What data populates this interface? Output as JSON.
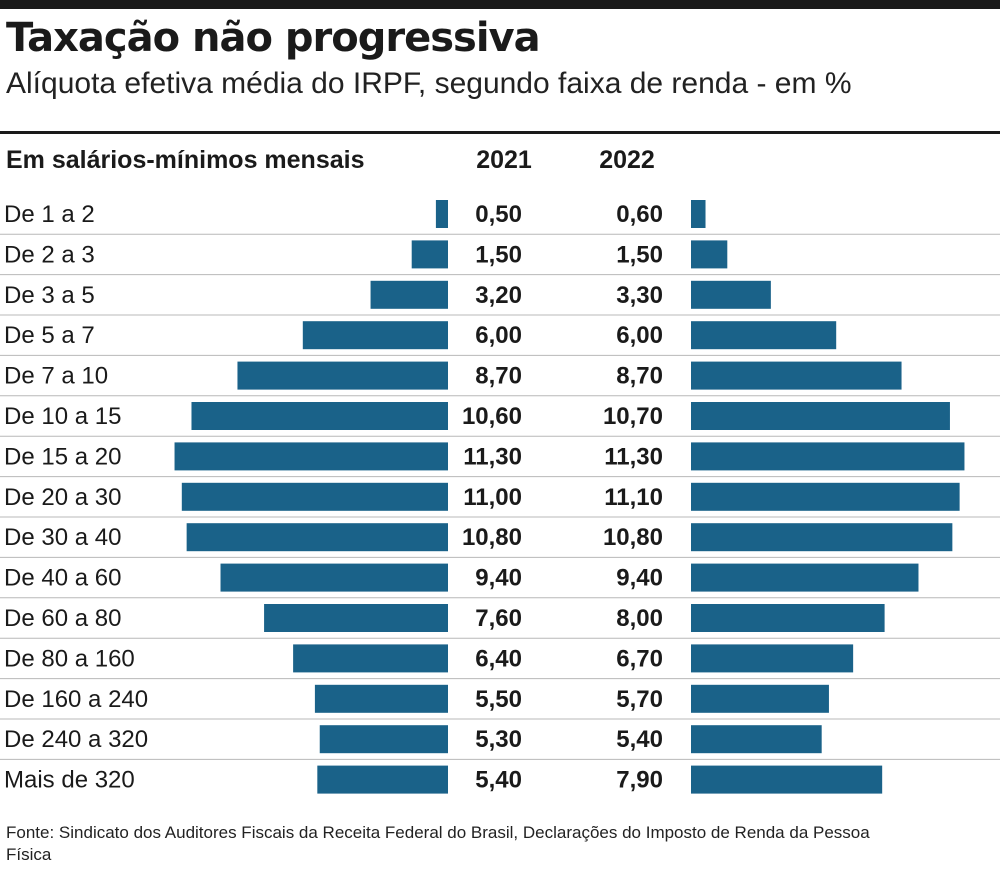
{
  "title": "Taxação não progressiva",
  "subtitle": "Alíquota efetiva média do IRPF, segundo faixa de renda - em %",
  "source": "Fonte: Sindicato dos Auditores Fiscais da Receita Federal do Brasil, Declarações do Imposto de Renda da Pessoa Física",
  "colors": {
    "bar": "#1a6289",
    "rule": "#1a1a1a",
    "grid": "#b8b8b8"
  },
  "chart_data": {
    "type": "bar",
    "orientation": "horizontal-butterfly",
    "category_header": "Em salários-mínimos mensais",
    "categories": [
      "De 1 a 2",
      "De 2 a 3",
      "De 3 a 5",
      "De 5 a 7",
      "De 7 a 10",
      "De 10 a 15",
      "De 15 a 20",
      "De 20 a 30",
      "De 30 a 40",
      "De 40 a 60",
      "De 60 a 80",
      "De 80 a 160",
      "De 160 a 240",
      "De 240 a 320",
      "Mais de 320"
    ],
    "series": [
      {
        "name": "2021",
        "values": [
          0.5,
          1.5,
          3.2,
          6.0,
          8.7,
          10.6,
          11.3,
          11.0,
          10.8,
          9.4,
          7.6,
          6.4,
          5.5,
          5.3,
          5.4
        ],
        "labels": [
          "0,50",
          "1,50",
          "3,20",
          "6,00",
          "8,70",
          "10,60",
          "11,30",
          "11,00",
          "10,80",
          "9,40",
          "7,60",
          "6,40",
          "5,50",
          "5,30",
          "5,40"
        ]
      },
      {
        "name": "2022",
        "values": [
          0.6,
          1.5,
          3.3,
          6.0,
          8.7,
          10.7,
          11.3,
          11.1,
          10.8,
          9.4,
          8.0,
          6.7,
          5.7,
          5.4,
          7.9
        ],
        "labels": [
          "0,60",
          "1,50",
          "3,30",
          "6,00",
          "8,70",
          "10,70",
          "11,30",
          "11,10",
          "10,80",
          "9,40",
          "8,00",
          "6,70",
          "5,70",
          "5,40",
          "7,90"
        ]
      }
    ],
    "grid": true
  }
}
